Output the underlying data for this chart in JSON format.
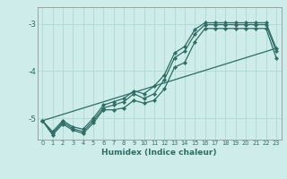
{
  "xlabel": "Humidex (Indice chaleur)",
  "background_color": "#ceecea",
  "line_color": "#2e6e65",
  "grid_color": "#b0d8d4",
  "xlim": [
    -0.5,
    23.5
  ],
  "ylim": [
    -5.45,
    -2.65
  ],
  "yticks": [
    -5,
    -4,
    -3
  ],
  "xticks": [
    0,
    1,
    2,
    3,
    4,
    5,
    6,
    7,
    8,
    9,
    10,
    11,
    12,
    13,
    14,
    15,
    16,
    17,
    18,
    19,
    20,
    21,
    22,
    23
  ],
  "line1_x": [
    0,
    1,
    2,
    3,
    4,
    5,
    6,
    7,
    8,
    9,
    10,
    11,
    12,
    13,
    14,
    15,
    16,
    17,
    18,
    19,
    20,
    21,
    22,
    23
  ],
  "line1_y": [
    -5.05,
    -5.28,
    -5.05,
    -5.18,
    -5.23,
    -5.0,
    -4.72,
    -4.65,
    -4.58,
    -4.42,
    -4.48,
    -4.32,
    -4.08,
    -3.62,
    -3.48,
    -3.12,
    -2.98,
    -2.98,
    -2.98,
    -2.98,
    -2.98,
    -2.98,
    -2.98,
    -3.52
  ],
  "line2_x": [
    0,
    1,
    2,
    3,
    4,
    5,
    6,
    7,
    8,
    9,
    10,
    11,
    12,
    13,
    14,
    15,
    16,
    17,
    18,
    19,
    20,
    21,
    22,
    23
  ],
  "line2_y": [
    -5.05,
    -5.32,
    -5.08,
    -5.22,
    -5.28,
    -5.05,
    -4.78,
    -4.72,
    -4.65,
    -4.48,
    -4.58,
    -4.48,
    -4.18,
    -3.72,
    -3.58,
    -3.22,
    -3.02,
    -3.02,
    -3.02,
    -3.02,
    -3.02,
    -3.02,
    -3.02,
    -3.58
  ],
  "line3_x": [
    0,
    1,
    2,
    3,
    4,
    5,
    6,
    7,
    8,
    9,
    10,
    11,
    12,
    13,
    14,
    15,
    16,
    17,
    18,
    19,
    20,
    21,
    22,
    23
  ],
  "line3_y": [
    -5.05,
    -5.35,
    -5.12,
    -5.25,
    -5.32,
    -5.1,
    -4.82,
    -4.82,
    -4.78,
    -4.62,
    -4.68,
    -4.62,
    -4.38,
    -3.92,
    -3.82,
    -3.38,
    -3.1,
    -3.1,
    -3.1,
    -3.1,
    -3.1,
    -3.1,
    -3.1,
    -3.72
  ],
  "line4_x": [
    0,
    23
  ],
  "line4_y": [
    -5.05,
    -3.52
  ]
}
